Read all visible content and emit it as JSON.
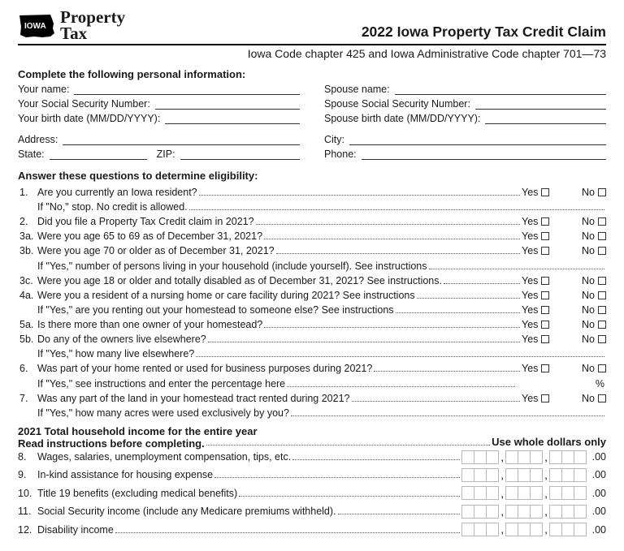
{
  "header": {
    "state_label": "IOWA",
    "logo_line1": "Property",
    "logo_line2": "Tax",
    "title": "2022 Iowa Property Tax Credit Claim",
    "subtitle": "Iowa Code chapter 425 and Iowa Administrative Code chapter 701—73"
  },
  "personal_info": {
    "heading": "Complete the following personal information:",
    "your_name": "Your name:",
    "spouse_name": "Spouse name:",
    "your_ssn": "Your Social Security Number:",
    "spouse_ssn": "Spouse Social Security Number:",
    "your_birth": "Your birth date (MM/DD/YYYY):",
    "spouse_birth": "Spouse birth date (MM/DD/YYYY):",
    "address": "Address:",
    "city": "City:",
    "state": "State:",
    "zip": "ZIP:",
    "phone": "Phone:"
  },
  "eligibility": {
    "heading": "Answer these questions to determine eligibility:",
    "yes": "Yes",
    "no": "No",
    "percent": "%",
    "q1": {
      "num": "1.",
      "text": "Are you currently an Iowa resident?",
      "sub": "If \"No,\" stop. No credit is allowed."
    },
    "q2": {
      "num": "2.",
      "text": "Did you file a Property Tax Credit claim in 2021?"
    },
    "q3a": {
      "num": "3a.",
      "text": "Were you age 65 to 69 as of December 31, 2021?"
    },
    "q3b": {
      "num": "3b.",
      "text": "Were you age 70 or older as of December 31, 2021?",
      "sub": "If \"Yes,\" number of persons living in your household (include yourself). See instructions"
    },
    "q3c": {
      "num": "3c.",
      "text": "Were you age 18 or older and totally disabled as of December 31, 2021? See instructions."
    },
    "q4a": {
      "num": "4a.",
      "text": "Were you a resident of a nursing home or care facility during 2021? See instructions",
      "sub": "If \"Yes,\" are you renting out your homestead to someone else? See instructions"
    },
    "q5a": {
      "num": "5a.",
      "text": "Is there more than one owner of your homestead?"
    },
    "q5b": {
      "num": "5b.",
      "text": "Do any of the owners live elsewhere?",
      "sub": "If \"Yes,\" how many live elsewhere?"
    },
    "q6": {
      "num": "6.",
      "text": "Was part of your home rented or used for business purposes during 2021?",
      "sub": "If \"Yes,\" see instructions and enter the percentage here"
    },
    "q7": {
      "num": "7.",
      "text": "Was any part of the land in your homestead tract rented during 2021?",
      "sub": "If \"Yes,\" how many acres were used exclusively by you?"
    }
  },
  "income": {
    "heading1": "2021 Total household income for the entire year",
    "heading2": "Read instructions before completing.",
    "right": "Use whole dollars only",
    "decimals": ".00",
    "rows": [
      {
        "num": "8.",
        "text": "Wages, salaries, unemployment compensation, tips, etc."
      },
      {
        "num": "9.",
        "text": "In-kind assistance for housing expense"
      },
      {
        "num": "10.",
        "text": "Title 19 benefits (excluding medical benefits)"
      },
      {
        "num": "11.",
        "text": "Social Security income (include any Medicare premiums withheld)."
      },
      {
        "num": "12.",
        "text": "Disability income"
      }
    ]
  }
}
